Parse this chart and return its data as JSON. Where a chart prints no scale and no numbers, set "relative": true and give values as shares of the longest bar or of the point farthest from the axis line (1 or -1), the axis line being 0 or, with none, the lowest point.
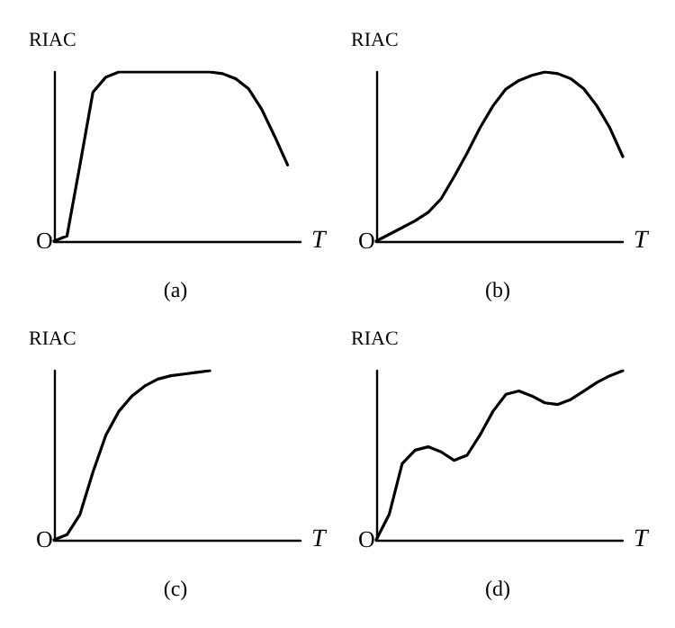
{
  "chart_data": [
    {
      "type": "line",
      "title": "(a)",
      "xlabel": "T",
      "ylabel": "RIAC",
      "annotations": [
        "O"
      ],
      "relative": true,
      "grid": false,
      "line_style": "solid",
      "categories": [
        null,
        null,
        null,
        null,
        null,
        null,
        null,
        null,
        null,
        null,
        null,
        null,
        null,
        null,
        null,
        null,
        null,
        null,
        null,
        null
      ],
      "series": [
        {
          "color": "#000000",
          "values": [
            0,
            0.03,
            0.45,
            0.88,
            0.97,
            1,
            1,
            1,
            1,
            1,
            1,
            1,
            1,
            0.99,
            0.96,
            0.9,
            0.78,
            0.62,
            0.45,
            null
          ]
        }
      ]
    },
    {
      "type": "line",
      "title": "(b)",
      "xlabel": "T",
      "ylabel": "RIAC",
      "annotations": [
        "O"
      ],
      "relative": true,
      "grid": false,
      "line_style": "solid",
      "categories": [
        null,
        null,
        null,
        null,
        null,
        null,
        null,
        null,
        null,
        null,
        null,
        null,
        null,
        null,
        null,
        null,
        null,
        null,
        null,
        null
      ],
      "series": [
        {
          "color": "#000000",
          "values": [
            0,
            0.04,
            0.08,
            0.12,
            0.17,
            0.25,
            0.38,
            0.52,
            0.67,
            0.8,
            0.9,
            0.95,
            0.98,
            1,
            0.99,
            0.96,
            0.9,
            0.8,
            0.67,
            0.5
          ]
        }
      ]
    },
    {
      "type": "line",
      "title": "(c)",
      "xlabel": "T",
      "ylabel": "RIAC",
      "annotations": [
        "O"
      ],
      "relative": true,
      "grid": false,
      "line_style": "solid",
      "categories": [
        null,
        null,
        null,
        null,
        null,
        null,
        null,
        null,
        null,
        null,
        null,
        null,
        null,
        null,
        null,
        null,
        null,
        null,
        null,
        null
      ],
      "series": [
        {
          "color": "#000000",
          "values": [
            0,
            0.03,
            0.15,
            0.4,
            0.62,
            0.76,
            0.85,
            0.91,
            0.95,
            0.97,
            0.98,
            0.99,
            1,
            null,
            null,
            null,
            null,
            null,
            null,
            null
          ]
        }
      ]
    },
    {
      "type": "line",
      "title": "(d)",
      "xlabel": "T",
      "ylabel": "RIAC",
      "annotations": [
        "O"
      ],
      "relative": true,
      "grid": false,
      "line_style": "solid",
      "categories": [
        null,
        null,
        null,
        null,
        null,
        null,
        null,
        null,
        null,
        null,
        null,
        null,
        null,
        null,
        null,
        null,
        null,
        null,
        null,
        null
      ],
      "series": [
        {
          "color": "#000000",
          "values": [
            0,
            0.15,
            0.45,
            0.53,
            0.55,
            0.52,
            0.47,
            0.5,
            0.62,
            0.76,
            0.86,
            0.88,
            0.85,
            0.81,
            0.8,
            0.83,
            0.88,
            0.93,
            0.97,
            1
          ]
        }
      ]
    }
  ]
}
